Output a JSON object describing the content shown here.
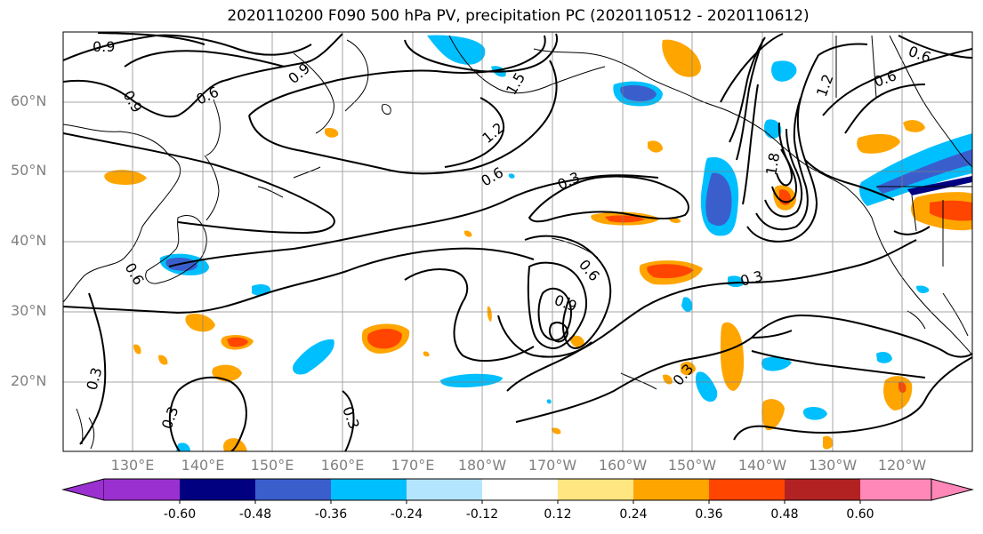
{
  "title": "2020110200 F090 500 hPa PV, precipitation PC (2020110512 - 2020110612)",
  "lat_labels": [
    "60°N",
    "50°N",
    "40°N",
    "30°N",
    "20°N"
  ],
  "lon_labels": [
    "130°E",
    "140°E",
    "150°E",
    "160°E",
    "170°E",
    "180°W",
    "170°W",
    "160°W",
    "150°W",
    "140°W",
    "130°W",
    "120°W"
  ],
  "contour_labels": [
    "0.9",
    "0.6",
    "0.9",
    "0.6",
    "0.9",
    "1.5",
    "1.2",
    "0.6",
    "0.3",
    "0.6",
    "0.9",
    "0.3",
    "0.3",
    "0.3",
    "1.8",
    "1.2",
    "0.6",
    "0.6",
    "0.3",
    "0.3"
  ],
  "colorbar": {
    "colors": [
      "#9b30d0",
      "#000080",
      "#3a5fcd",
      "#00bfff",
      "#b3e5ff",
      "#ffffff",
      "#ffe680",
      "#ffa500",
      "#ff4500",
      "#b22222",
      "#ff88b8",
      "#ff88b8"
    ],
    "ticks": [
      "-0.60",
      "-0.48",
      "-0.36",
      "-0.24",
      "-0.12",
      "0.12",
      "0.24",
      "0.36",
      "0.48",
      "0.60"
    ]
  }
}
